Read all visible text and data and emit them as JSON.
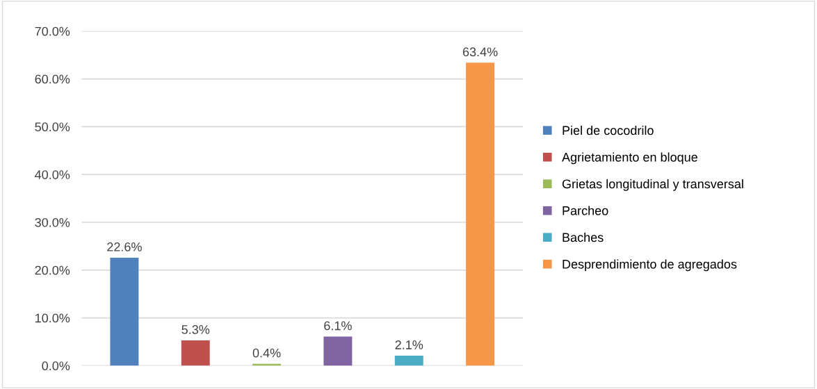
{
  "chart_data": {
    "type": "bar",
    "categories": [
      null,
      null,
      null,
      null,
      null,
      null
    ],
    "series": [
      {
        "name": "Piel de cocodrilo",
        "color": "#4f81bd",
        "values": [
          22.6,
          null,
          null,
          null,
          null,
          null
        ],
        "value_labels": [
          "22.6%",
          null,
          null,
          null,
          null,
          null
        ]
      },
      {
        "name": "Agrietamiento en bloque",
        "color": "#c0504d",
        "values": [
          null,
          5.3,
          null,
          null,
          null,
          null
        ],
        "value_labels": [
          null,
          "5.3%",
          null,
          null,
          null,
          null
        ]
      },
      {
        "name": "Grietas longitudinal y transversal",
        "color": "#9bbb59",
        "values": [
          null,
          null,
          0.4,
          null,
          null,
          null
        ],
        "value_labels": [
          null,
          null,
          "0.4%",
          null,
          null,
          null
        ]
      },
      {
        "name": "Parcheo",
        "color": "#8064a2",
        "values": [
          null,
          null,
          null,
          6.1,
          null,
          null
        ],
        "value_labels": [
          null,
          null,
          null,
          "6.1%",
          null,
          null
        ]
      },
      {
        "name": "Baches",
        "color": "#4bacc6",
        "values": [
          null,
          null,
          null,
          null,
          2.1,
          null
        ],
        "value_labels": [
          null,
          null,
          null,
          null,
          "2.1%",
          null
        ]
      },
      {
        "name": "Desprendimiento de agregados",
        "color": "#f79646",
        "values": [
          null,
          null,
          null,
          null,
          null,
          63.4
        ],
        "value_labels": [
          null,
          null,
          null,
          null,
          null,
          "63.4%"
        ]
      }
    ],
    "ylim": [
      0,
      70
    ],
    "yticks": [
      {
        "value": 0,
        "label": "0.0%"
      },
      {
        "value": 10,
        "label": "10.0%"
      },
      {
        "value": 20,
        "label": "20.0%"
      },
      {
        "value": 30,
        "label": "30.0%"
      },
      {
        "value": 40,
        "label": "40.0%"
      },
      {
        "value": 50,
        "label": "50.0%"
      },
      {
        "value": 60,
        "label": "60.0%"
      },
      {
        "value": 70,
        "label": "70.0%"
      }
    ],
    "grid": "y",
    "legend": "right"
  }
}
